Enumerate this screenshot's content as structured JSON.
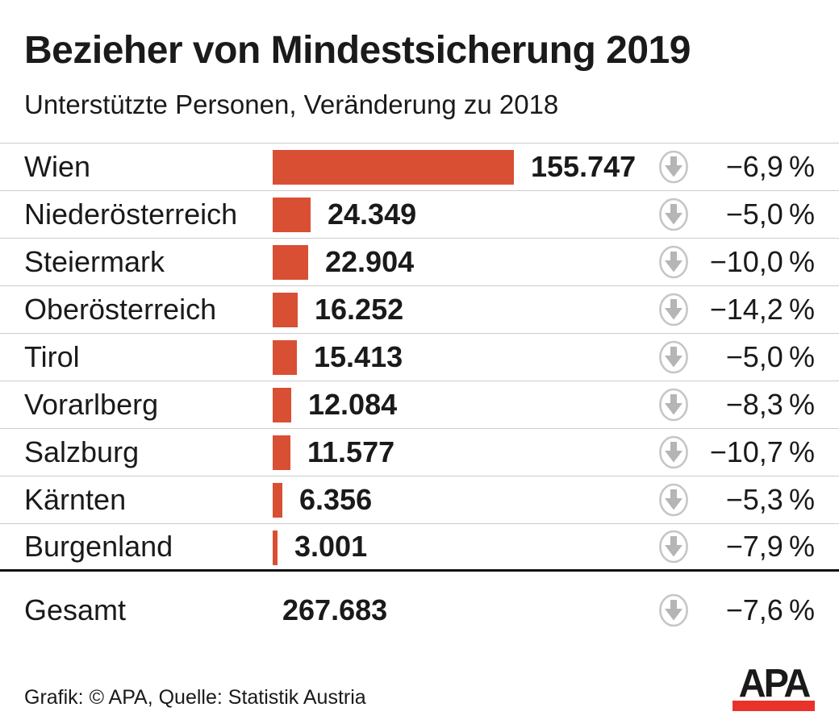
{
  "header": {
    "title": "Bezieher von Mindestsicherung 2019",
    "subtitle": "Unterstützte Personen, Veränderung zu 2018"
  },
  "chart_data": {
    "type": "bar",
    "title": "Bezieher von Mindestsicherung 2019",
    "subtitle": "Unterstützte Personen, Veränderung zu 2018",
    "orientation": "horizontal",
    "bar_color": "#d94f33",
    "max_value": 155747,
    "categories": [
      "Wien",
      "Niederösterreich",
      "Steiermark",
      "Oberösterreich",
      "Tirol",
      "Vorarlberg",
      "Salzburg",
      "Kärnten",
      "Burgenland"
    ],
    "values": [
      155747,
      24349,
      22904,
      16252,
      15413,
      12084,
      11577,
      6356,
      3001
    ],
    "changes_pct": [
      -6.9,
      -5.0,
      -10.0,
      -14.2,
      -5.0,
      -8.3,
      -10.7,
      -5.3,
      -7.9
    ],
    "rows": [
      {
        "label": "Wien",
        "value": 155747,
        "value_label": "155.747",
        "change_label": "−6,9 %",
        "direction": "down"
      },
      {
        "label": "Niederösterreich",
        "value": 24349,
        "value_label": "24.349",
        "change_label": "−5,0 %",
        "direction": "down"
      },
      {
        "label": "Steiermark",
        "value": 22904,
        "value_label": "22.904",
        "change_label": "−10,0 %",
        "direction": "down"
      },
      {
        "label": "Oberösterreich",
        "value": 16252,
        "value_label": "16.252",
        "change_label": "−14,2 %",
        "direction": "down"
      },
      {
        "label": "Tirol",
        "value": 15413,
        "value_label": "15.413",
        "change_label": "−5,0 %",
        "direction": "down"
      },
      {
        "label": "Vorarlberg",
        "value": 12084,
        "value_label": "12.084",
        "change_label": "−8,3 %",
        "direction": "down"
      },
      {
        "label": "Salzburg",
        "value": 11577,
        "value_label": "11.577",
        "change_label": "−10,7 %",
        "direction": "down"
      },
      {
        "label": "Kärnten",
        "value": 6356,
        "value_label": "6.356",
        "change_label": "−5,3 %",
        "direction": "down"
      },
      {
        "label": "Burgenland",
        "value": 3001,
        "value_label": "3.001",
        "change_label": "−7,9 %",
        "direction": "down"
      }
    ],
    "total": {
      "label": "Gesamt",
      "value": 267683,
      "value_label": "267.683",
      "change_pct": -7.6,
      "change_label": "−7,6 %",
      "direction": "down"
    }
  },
  "footer": {
    "credit": "Grafik: © APA, Quelle: Statistik Austria",
    "logo_text": "APA"
  },
  "icons": {
    "down_arrow": "circled-down-arrow-icon"
  },
  "colors": {
    "bar": "#d94f33",
    "divider": "#cccccc",
    "total_divider": "#111111",
    "icon_ring": "#c6c6c6",
    "icon_arrow": "#b5b5b5",
    "logo_red": "#e8332a",
    "text": "#1a1a1a",
    "background": "#ffffff"
  }
}
